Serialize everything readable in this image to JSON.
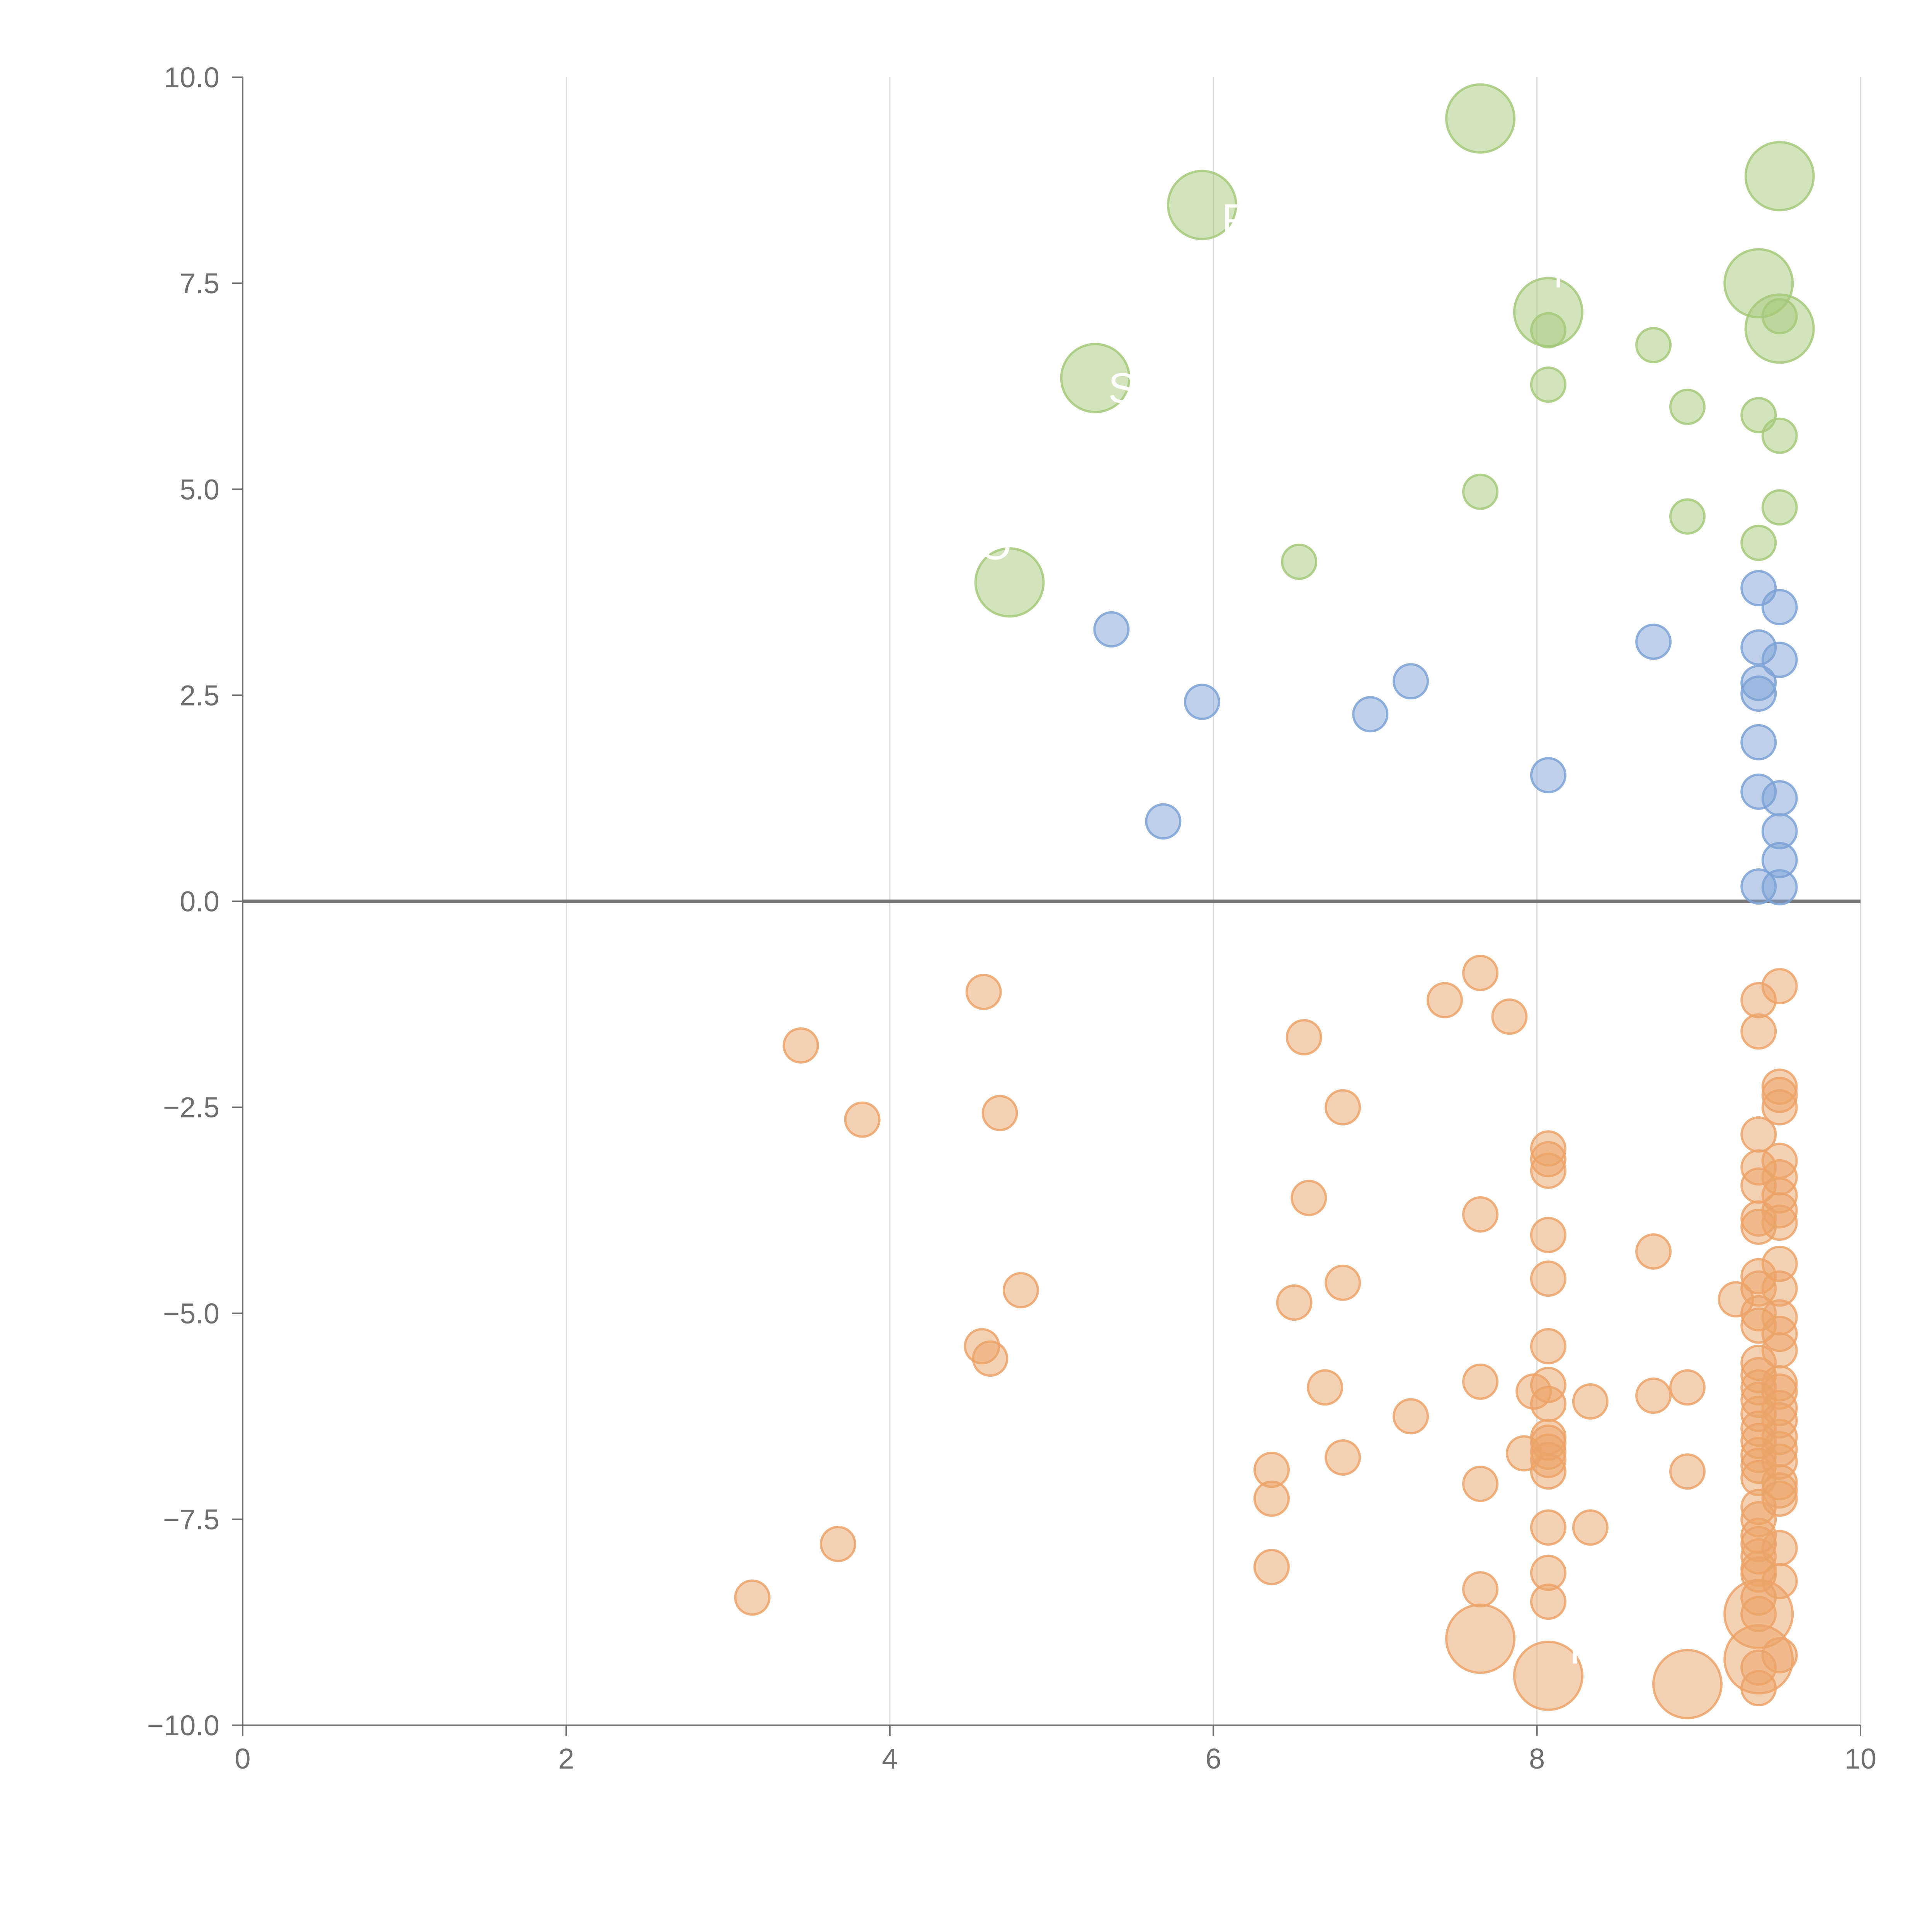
{
  "chart_data": {
    "type": "scatter",
    "title": "",
    "xlabel": "",
    "ylabel": "",
    "xlim": [
      0,
      10
    ],
    "ylim": [
      -10,
      10
    ],
    "x_ticks": [
      0,
      2,
      4,
      6,
      8,
      10
    ],
    "x_tick_labels": [
      "0",
      "2",
      "4",
      "6",
      "8",
      "10"
    ],
    "y_ticks": [
      10,
      7.5,
      5,
      2.5,
      0,
      -2.5,
      -5,
      -7.5,
      -10
    ],
    "y_tick_labels": [
      "10.0",
      "7.5",
      "5.0",
      "2.5",
      "0.0",
      "−2.5",
      "−5.0",
      "−7.5",
      "−10.0"
    ],
    "grid": "vertical",
    "series": [
      {
        "name": "green",
        "color": "#a5c97a",
        "points": [
          {
            "x": 7.65,
            "y": 9.5,
            "r": 1.6
          },
          {
            "x": 9.5,
            "y": 8.8,
            "r": 1.6
          },
          {
            "x": 5.93,
            "y": 8.45,
            "r": 1.6
          },
          {
            "x": 9.37,
            "y": 7.5,
            "r": 1.6
          },
          {
            "x": 8.07,
            "y": 7.15,
            "r": 1.6
          },
          {
            "x": 9.5,
            "y": 6.95,
            "r": 1.6
          },
          {
            "x": 5.27,
            "y": 6.35,
            "r": 1.6
          },
          {
            "x": 4.74,
            "y": 3.87,
            "r": 1.6
          },
          {
            "x": 9.5,
            "y": 7.1,
            "r": 0.8
          },
          {
            "x": 8.07,
            "y": 6.93,
            "r": 0.8
          },
          {
            "x": 8.72,
            "y": 6.75,
            "r": 0.8
          },
          {
            "x": 8.07,
            "y": 6.27,
            "r": 0.8
          },
          {
            "x": 8.93,
            "y": 6.0,
            "r": 0.8
          },
          {
            "x": 9.37,
            "y": 5.9,
            "r": 0.8
          },
          {
            "x": 9.5,
            "y": 5.65,
            "r": 0.8
          },
          {
            "x": 7.65,
            "y": 4.97,
            "r": 0.8
          },
          {
            "x": 9.5,
            "y": 4.78,
            "r": 0.8
          },
          {
            "x": 8.93,
            "y": 4.67,
            "r": 0.8
          },
          {
            "x": 9.37,
            "y": 4.35,
            "r": 0.8
          },
          {
            "x": 6.53,
            "y": 4.12,
            "r": 0.8
          }
        ]
      },
      {
        "name": "blue",
        "color": "#7da2d6",
        "points": [
          {
            "x": 9.37,
            "y": 3.8
          },
          {
            "x": 9.5,
            "y": 3.57
          },
          {
            "x": 5.37,
            "y": 3.3
          },
          {
            "x": 8.72,
            "y": 3.15
          },
          {
            "x": 9.37,
            "y": 3.08
          },
          {
            "x": 9.5,
            "y": 2.93
          },
          {
            "x": 7.22,
            "y": 2.67
          },
          {
            "x": 9.37,
            "y": 2.65
          },
          {
            "x": 9.37,
            "y": 2.52
          },
          {
            "x": 5.93,
            "y": 2.42
          },
          {
            "x": 6.97,
            "y": 2.27
          },
          {
            "x": 9.37,
            "y": 1.93
          },
          {
            "x": 8.07,
            "y": 1.53
          },
          {
            "x": 9.37,
            "y": 1.33
          },
          {
            "x": 9.5,
            "y": 1.25
          },
          {
            "x": 5.69,
            "y": 0.97
          },
          {
            "x": 9.5,
            "y": 0.85
          },
          {
            "x": 9.5,
            "y": 0.5
          },
          {
            "x": 9.37,
            "y": 0.18
          },
          {
            "x": 9.5,
            "y": 0.17
          }
        ]
      },
      {
        "name": "orange",
        "color": "#eca368",
        "points": [
          {
            "x": 7.65,
            "y": -0.87
          },
          {
            "x": 9.5,
            "y": -1.03
          },
          {
            "x": 4.58,
            "y": -1.1
          },
          {
            "x": 7.43,
            "y": -1.2
          },
          {
            "x": 9.37,
            "y": -1.2
          },
          {
            "x": 7.83,
            "y": -1.4
          },
          {
            "x": 9.37,
            "y": -1.58
          },
          {
            "x": 6.56,
            "y": -1.65
          },
          {
            "x": 3.45,
            "y": -1.75
          },
          {
            "x": 9.5,
            "y": -2.25
          },
          {
            "x": 9.5,
            "y": -2.35
          },
          {
            "x": 6.8,
            "y": -2.5
          },
          {
            "x": 9.5,
            "y": -2.5
          },
          {
            "x": 4.68,
            "y": -2.57
          },
          {
            "x": 3.83,
            "y": -2.65
          },
          {
            "x": 9.37,
            "y": -2.83
          },
          {
            "x": 8.07,
            "y": -3.0
          },
          {
            "x": 9.5,
            "y": -3.15
          },
          {
            "x": 8.07,
            "y": -3.13
          },
          {
            "x": 9.37,
            "y": -3.23
          },
          {
            "x": 8.07,
            "y": -3.27
          },
          {
            "x": 9.5,
            "y": -3.35
          },
          {
            "x": 9.37,
            "y": -3.45
          },
          {
            "x": 9.5,
            "y": -3.57
          },
          {
            "x": 6.59,
            "y": -3.6
          },
          {
            "x": 9.5,
            "y": -3.75
          },
          {
            "x": 7.65,
            "y": -3.8
          },
          {
            "x": 9.37,
            "y": -3.85
          },
          {
            "x": 9.37,
            "y": -3.95
          },
          {
            "x": 9.5,
            "y": -3.9
          },
          {
            "x": 8.07,
            "y": -4.05
          },
          {
            "x": 8.72,
            "y": -4.25
          },
          {
            "x": 9.5,
            "y": -4.4
          },
          {
            "x": 9.37,
            "y": -4.55
          },
          {
            "x": 8.07,
            "y": -4.58
          },
          {
            "x": 6.8,
            "y": -4.63
          },
          {
            "x": 9.37,
            "y": -4.7
          },
          {
            "x": 4.81,
            "y": -4.72
          },
          {
            "x": 9.5,
            "y": -4.7
          },
          {
            "x": 9.23,
            "y": -4.83
          },
          {
            "x": 6.5,
            "y": -4.87
          },
          {
            "x": 9.37,
            "y": -5.0
          },
          {
            "x": 9.5,
            "y": -5.05
          },
          {
            "x": 9.37,
            "y": -5.15
          },
          {
            "x": 9.5,
            "y": -5.25
          },
          {
            "x": 4.57,
            "y": -5.4
          },
          {
            "x": 8.07,
            "y": -5.4
          },
          {
            "x": 9.5,
            "y": -5.45
          },
          {
            "x": 4.62,
            "y": -5.55
          },
          {
            "x": 9.37,
            "y": -5.6
          },
          {
            "x": 9.37,
            "y": -5.75
          },
          {
            "x": 9.5,
            "y": -5.85
          },
          {
            "x": 7.65,
            "y": -5.83
          },
          {
            "x": 8.07,
            "y": -5.87
          },
          {
            "x": 6.69,
            "y": -5.9
          },
          {
            "x": 9.37,
            "y": -5.9
          },
          {
            "x": 8.93,
            "y": -5.9
          },
          {
            "x": 7.98,
            "y": -5.95
          },
          {
            "x": 9.5,
            "y": -5.95
          },
          {
            "x": 9.37,
            "y": -6.05
          },
          {
            "x": 8.72,
            "y": -6.0
          },
          {
            "x": 8.33,
            "y": -6.07
          },
          {
            "x": 8.07,
            "y": -6.1
          },
          {
            "x": 9.5,
            "y": -6.15
          },
          {
            "x": 9.37,
            "y": -6.22
          },
          {
            "x": 7.22,
            "y": -6.25
          },
          {
            "x": 9.5,
            "y": -6.3
          },
          {
            "x": 9.37,
            "y": -6.4
          },
          {
            "x": 8.07,
            "y": -6.5
          },
          {
            "x": 9.5,
            "y": -6.5
          },
          {
            "x": 8.07,
            "y": -6.57
          },
          {
            "x": 9.37,
            "y": -6.55
          },
          {
            "x": 9.5,
            "y": -6.65
          },
          {
            "x": 8.07,
            "y": -6.68
          },
          {
            "x": 7.92,
            "y": -6.7
          },
          {
            "x": 9.37,
            "y": -6.72
          },
          {
            "x": 8.07,
            "y": -6.78
          },
          {
            "x": 6.8,
            "y": -6.75
          },
          {
            "x": 9.5,
            "y": -6.8
          },
          {
            "x": 9.37,
            "y": -6.85
          },
          {
            "x": 6.36,
            "y": -6.9
          },
          {
            "x": 8.07,
            "y": -6.92
          },
          {
            "x": 8.93,
            "y": -6.92
          },
          {
            "x": 9.37,
            "y": -7.0
          },
          {
            "x": 9.5,
            "y": -7.05
          },
          {
            "x": 7.65,
            "y": -7.07
          },
          {
            "x": 9.5,
            "y": -7.15
          },
          {
            "x": 6.36,
            "y": -7.25
          },
          {
            "x": 9.5,
            "y": -7.25
          },
          {
            "x": 9.37,
            "y": -7.35
          },
          {
            "x": 9.37,
            "y": -7.5
          },
          {
            "x": 8.07,
            "y": -7.6
          },
          {
            "x": 8.33,
            "y": -7.6
          },
          {
            "x": 9.37,
            "y": -7.7
          },
          {
            "x": 3.68,
            "y": -7.8
          },
          {
            "x": 9.37,
            "y": -7.8
          },
          {
            "x": 9.5,
            "y": -7.85
          },
          {
            "x": 9.37,
            "y": -7.95
          },
          {
            "x": 6.36,
            "y": -8.08
          },
          {
            "x": 9.37,
            "y": -8.1
          },
          {
            "x": 9.37,
            "y": -8.17
          },
          {
            "x": 8.07,
            "y": -8.15
          },
          {
            "x": 9.5,
            "y": -8.25
          },
          {
            "x": 7.65,
            "y": -8.35
          },
          {
            "x": 3.15,
            "y": -8.45
          },
          {
            "x": 9.37,
            "y": -8.45
          },
          {
            "x": 8.07,
            "y": -8.5
          },
          {
            "x": 9.37,
            "y": -8.65
          },
          {
            "x": 9.37,
            "y": -8.65,
            "r": 1.6
          },
          {
            "x": 7.65,
            "y": -8.95,
            "r": 1.6
          },
          {
            "x": 9.37,
            "y": -9.2,
            "r": 1.6
          },
          {
            "x": 8.07,
            "y": -9.4,
            "r": 1.6
          },
          {
            "x": 8.93,
            "y": -9.5,
            "r": 1.6
          },
          {
            "x": 9.5,
            "y": -9.15
          },
          {
            "x": 9.37,
            "y": -9.3
          },
          {
            "x": 9.37,
            "y": -9.55
          }
        ]
      }
    ],
    "annotations": [
      {
        "text": "P",
        "x": 6.05,
        "y": 8.1
      },
      {
        "text": "N",
        "x": 8.1,
        "y": 7.45
      },
      {
        "text": "S",
        "x": 5.35,
        "y": 6.05
      },
      {
        "text": "O",
        "x": 4.55,
        "y": 4.15
      },
      {
        "text": "PO",
        "x": 8.2,
        "y": -9.25
      }
    ]
  }
}
